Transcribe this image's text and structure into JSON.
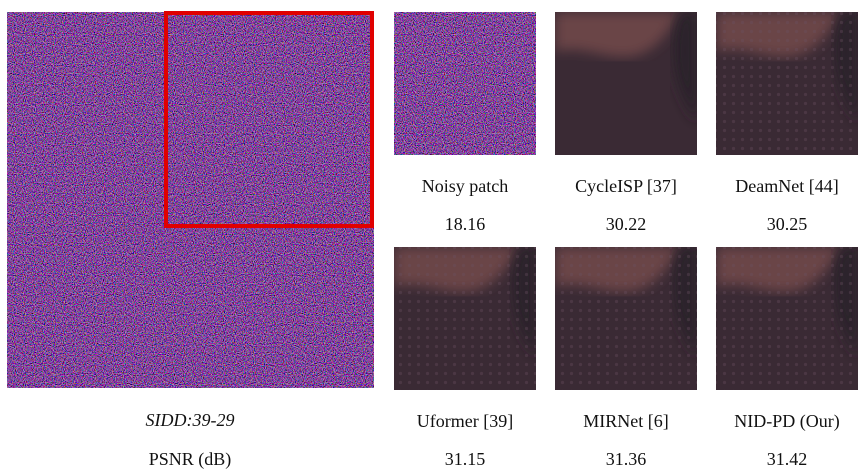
{
  "main": {
    "caption": "SIDD:39-29",
    "metric": "PSNR (dB)"
  },
  "panels": [
    {
      "label": "Noisy patch",
      "psnr": "18.16"
    },
    {
      "label": "CycleISP [37]",
      "psnr": "30.22"
    },
    {
      "label": "DeamNet [44]",
      "psnr": "30.25"
    },
    {
      "label": "Uformer [39]",
      "psnr": "31.15"
    },
    {
      "label": "MIRNet [6]",
      "psnr": "31.36"
    },
    {
      "label": "NID-PD (Our)",
      "psnr": "31.42"
    }
  ]
}
